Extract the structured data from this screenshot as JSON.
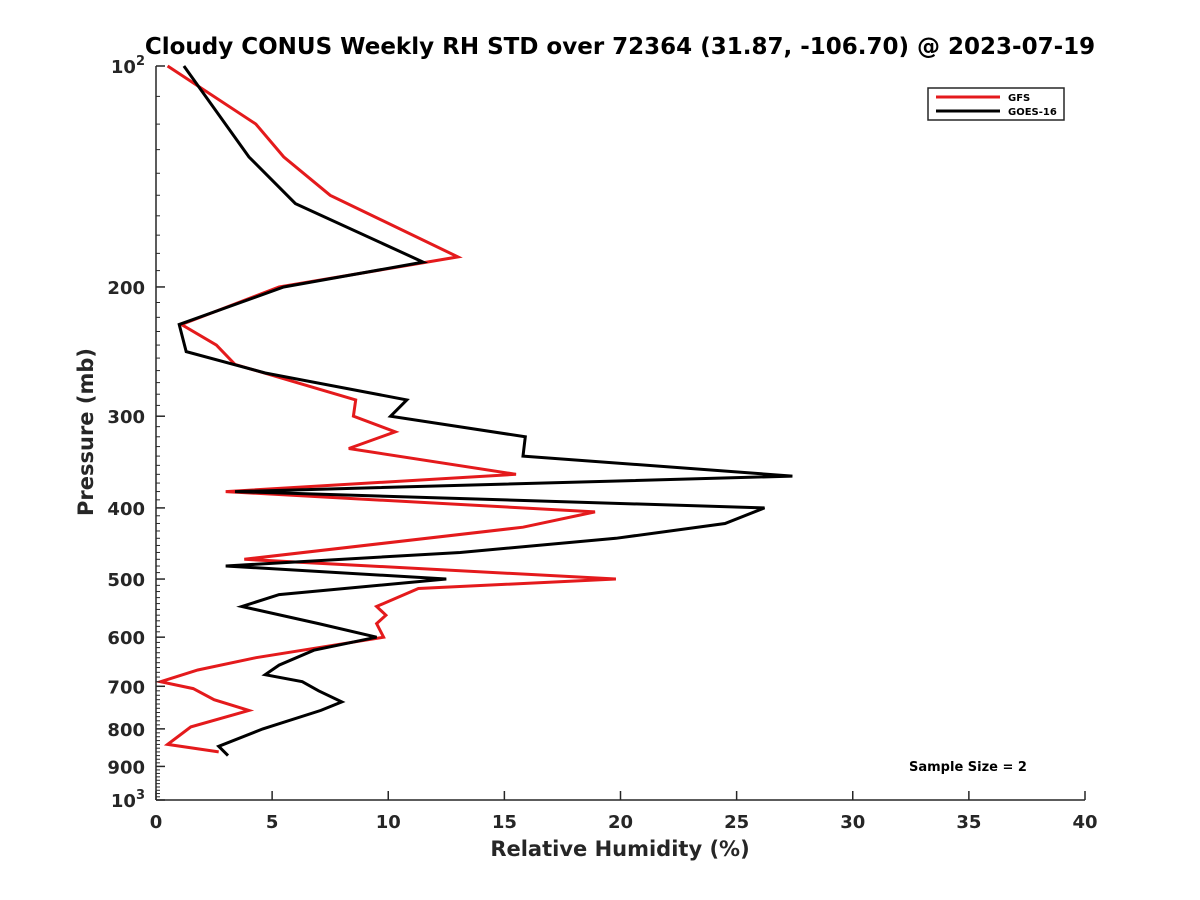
{
  "chart_data": {
    "type": "line",
    "title": "Cloudy CONUS Weekly RH STD over 72364 (31.87, -106.70) @ 2023-07-19",
    "xlabel": "Relative Humidity (%)",
    "ylabel": "Pressure (mb)",
    "xlim": [
      0,
      40
    ],
    "ylim": [
      100,
      1000
    ],
    "y_scale": "log",
    "y_reversed": true,
    "grid": false,
    "legend_position": "top-right",
    "x_ticks": [
      "0",
      "5",
      "10",
      "15",
      "20",
      "25",
      "30",
      "35",
      "40"
    ],
    "y_ticks": [
      {
        "value": 100,
        "base": "10",
        "exp": "2"
      },
      {
        "value": 200,
        "label": "200"
      },
      {
        "value": 300,
        "label": "300"
      },
      {
        "value": 400,
        "label": "400"
      },
      {
        "value": 500,
        "label": "500"
      },
      {
        "value": 600,
        "label": "600"
      },
      {
        "value": 700,
        "label": "700"
      },
      {
        "value": 800,
        "label": "800"
      },
      {
        "value": 900,
        "label": "900"
      },
      {
        "value": 1000,
        "base": "10",
        "exp": "3"
      }
    ],
    "annotation": "Sample Size = 2",
    "series": [
      {
        "name": "GFS",
        "color": "#e41a1c",
        "points": [
          [
            0.5,
            100
          ],
          [
            4.3,
            120
          ],
          [
            5.5,
            133
          ],
          [
            7.5,
            150
          ],
          [
            13.0,
            182
          ],
          [
            5.3,
            200
          ],
          [
            1.1,
            225
          ],
          [
            2.6,
            240
          ],
          [
            3.4,
            255
          ],
          [
            8.6,
            285
          ],
          [
            8.5,
            300
          ],
          [
            10.3,
            315
          ],
          [
            8.3,
            332
          ],
          [
            15.5,
            360
          ],
          [
            3.0,
            380
          ],
          [
            18.9,
            405
          ],
          [
            15.8,
            425
          ],
          [
            3.8,
            470
          ],
          [
            19.8,
            500
          ],
          [
            11.3,
            515
          ],
          [
            9.5,
            545
          ],
          [
            9.9,
            560
          ],
          [
            9.5,
            575
          ],
          [
            9.8,
            600
          ],
          [
            4.3,
            640
          ],
          [
            1.8,
            665
          ],
          [
            0.2,
            690
          ],
          [
            1.6,
            705
          ],
          [
            2.5,
            730
          ],
          [
            4.0,
            755
          ],
          [
            1.5,
            795
          ],
          [
            0.5,
            840
          ],
          [
            2.7,
            860
          ]
        ]
      },
      {
        "name": "GOES-16",
        "color": "#000000",
        "points": [
          [
            1.2,
            100
          ],
          [
            4.0,
            133
          ],
          [
            6.0,
            154
          ],
          [
            11.5,
            185
          ],
          [
            5.5,
            200
          ],
          [
            1.0,
            225
          ],
          [
            1.3,
            245
          ],
          [
            4.7,
            262
          ],
          [
            10.8,
            285
          ],
          [
            10.1,
            300
          ],
          [
            15.9,
            320
          ],
          [
            15.8,
            340
          ],
          [
            27.4,
            362
          ],
          [
            3.4,
            380
          ],
          [
            26.2,
            400
          ],
          [
            24.5,
            420
          ],
          [
            19.8,
            440
          ],
          [
            13.1,
            460
          ],
          [
            3.0,
            480
          ],
          [
            12.5,
            500
          ],
          [
            5.3,
            525
          ],
          [
            3.7,
            545
          ],
          [
            7.0,
            575
          ],
          [
            9.5,
            600
          ],
          [
            6.8,
            625
          ],
          [
            5.3,
            655
          ],
          [
            4.7,
            675
          ],
          [
            6.3,
            690
          ],
          [
            7.0,
            710
          ],
          [
            8.0,
            735
          ],
          [
            7.1,
            755
          ],
          [
            4.6,
            800
          ],
          [
            2.7,
            845
          ],
          [
            3.1,
            870
          ]
        ]
      }
    ]
  }
}
